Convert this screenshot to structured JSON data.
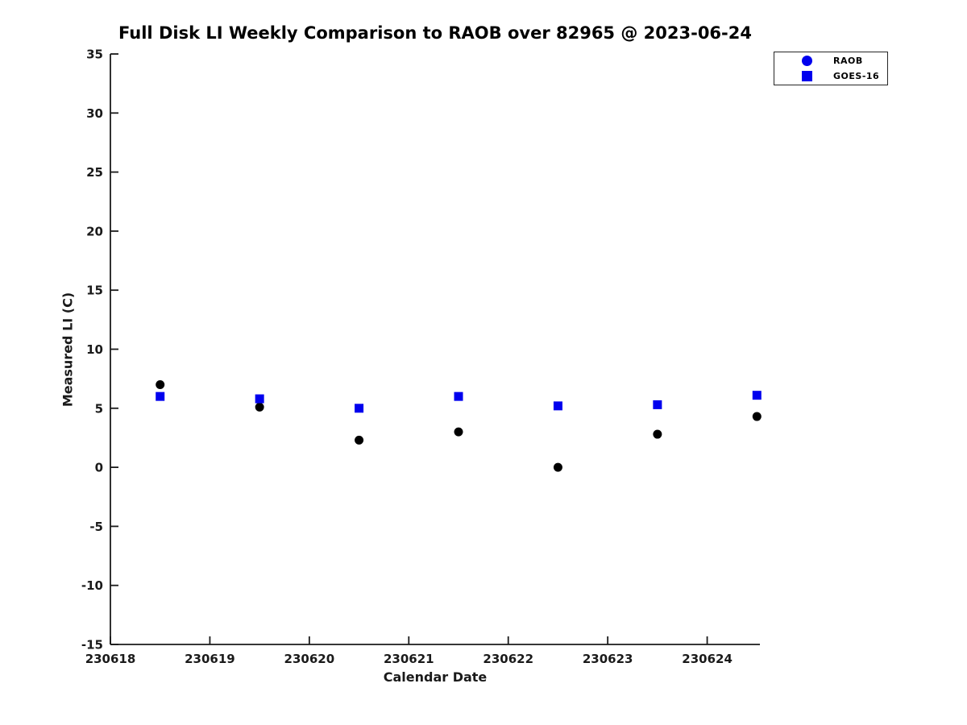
{
  "figure": {
    "background": "#ffffff",
    "axis_color": "#1a1a1a"
  },
  "chart_data": {
    "type": "scatter",
    "title": "Full Disk LI Weekly Comparison to RAOB over 82965 @ 2023-06-24",
    "xlabel": "Calendar Date",
    "ylabel": "Measured LI (C)",
    "xlim": [
      230618,
      230624.53
    ],
    "ylim": [
      -15,
      35
    ],
    "xticks": [
      230618,
      230619,
      230620,
      230621,
      230622,
      230623,
      230624
    ],
    "yticks": [
      -15,
      -10,
      -5,
      0,
      5,
      10,
      15,
      20,
      25,
      30,
      35
    ],
    "grid": false,
    "legend_position": "top-right-outside",
    "x": [
      230618.5,
      230619.5,
      230620.5,
      230621.5,
      230622.5,
      230623.5,
      230624.5
    ],
    "series": [
      {
        "name": "RAOB",
        "marker": "circle",
        "color": "#000000",
        "legend_color": "#0000EE",
        "values": [
          7.0,
          5.1,
          2.3,
          3.0,
          0.0,
          2.8,
          4.3
        ]
      },
      {
        "name": "GOES-16",
        "marker": "square",
        "color": "#0000EE",
        "legend_color": "#0000EE",
        "values": [
          6.0,
          5.8,
          5.0,
          6.0,
          5.2,
          5.3,
          6.1
        ]
      }
    ]
  }
}
